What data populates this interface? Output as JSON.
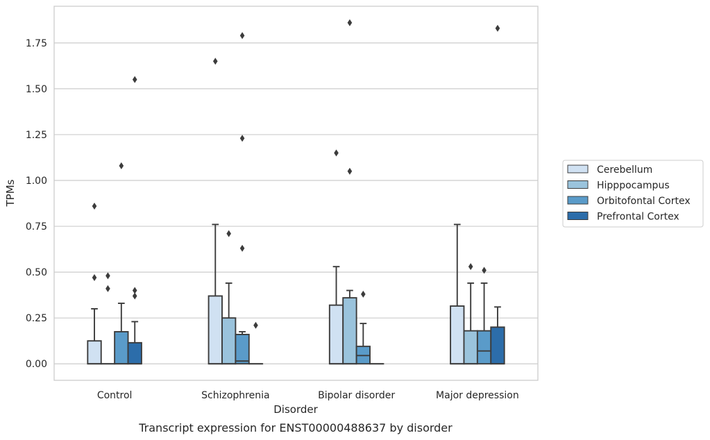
{
  "chart_data": {
    "type": "box",
    "title": "",
    "caption": "Transcript expression for ENST00000488637 by disorder",
    "xlabel": "Disorder",
    "ylabel": "TPMs",
    "ylim": [
      -0.09,
      1.95
    ],
    "yticks": [
      "0.00",
      "0.25",
      "0.50",
      "0.75",
      "1.00",
      "1.25",
      "1.50",
      "1.75"
    ],
    "categories": [
      "Control",
      "Schizophrenia",
      "Bipolar disorder",
      "Major depression"
    ],
    "grid": "horizontal",
    "legend_position": "right",
    "series": [
      {
        "name": "Cerebellum",
        "color": "#d0e1f2",
        "boxes": [
          {
            "q1": 0,
            "median": 0,
            "q3": 0.125,
            "whisker_low": 0,
            "whisker_high": 0.3,
            "outliers": [
              0.47,
              0.86
            ]
          },
          {
            "q1": 0,
            "median": 0,
            "q3": 0.37,
            "whisker_low": 0,
            "whisker_high": 0.76,
            "outliers": [
              1.65
            ]
          },
          {
            "q1": 0,
            "median": 0,
            "q3": 0.32,
            "whisker_low": 0,
            "whisker_high": 0.53,
            "outliers": [
              1.15
            ]
          },
          {
            "q1": 0,
            "median": 0,
            "q3": 0.315,
            "whisker_low": 0,
            "whisker_high": 0.76,
            "outliers": []
          }
        ]
      },
      {
        "name": "Hipppocampus",
        "color": "#9ac3dc",
        "boxes": [
          {
            "q1": 0,
            "median": 0,
            "q3": 0,
            "whisker_low": 0,
            "whisker_high": 0,
            "outliers": [
              0.41,
              0.48
            ]
          },
          {
            "q1": 0,
            "median": 0,
            "q3": 0.25,
            "whisker_low": 0,
            "whisker_high": 0.44,
            "outliers": [
              0.71
            ]
          },
          {
            "q1": 0,
            "median": 0,
            "q3": 0.36,
            "whisker_low": 0,
            "whisker_high": 0.4,
            "outliers": [
              1.05,
              1.86
            ]
          },
          {
            "q1": 0,
            "median": 0,
            "q3": 0.18,
            "whisker_low": 0,
            "whisker_high": 0.44,
            "outliers": [
              0.53
            ]
          }
        ]
      },
      {
        "name": "Orbitofontal Cortex",
        "color": "#5a9bc9",
        "boxes": [
          {
            "q1": 0,
            "median": 0,
            "q3": 0.175,
            "whisker_low": 0,
            "whisker_high": 0.33,
            "outliers": [
              1.08
            ]
          },
          {
            "q1": 0,
            "median": 0.015,
            "q3": 0.16,
            "whisker_low": 0,
            "whisker_high": 0.175,
            "outliers": [
              0.63,
              1.23,
              1.79
            ]
          },
          {
            "q1": 0,
            "median": 0.045,
            "q3": 0.095,
            "whisker_low": 0,
            "whisker_high": 0.22,
            "outliers": [
              0.38
            ]
          },
          {
            "q1": 0,
            "median": 0.07,
            "q3": 0.18,
            "whisker_low": 0,
            "whisker_high": 0.44,
            "outliers": [
              0.51
            ]
          }
        ]
      },
      {
        "name": "Prefrontal Cortex",
        "color": "#2c6daa",
        "boxes": [
          {
            "q1": 0,
            "median": 0,
            "q3": 0.115,
            "whisker_low": 0,
            "whisker_high": 0.23,
            "outliers": [
              0.37,
              0.4,
              1.55
            ]
          },
          {
            "q1": 0,
            "median": 0,
            "q3": 0,
            "whisker_low": 0,
            "whisker_high": 0,
            "outliers": [
              0.21
            ]
          },
          {
            "q1": 0,
            "median": 0,
            "q3": 0,
            "whisker_low": 0,
            "whisker_high": 0,
            "outliers": []
          },
          {
            "q1": 0,
            "median": 0,
            "q3": 0.2,
            "whisker_low": 0,
            "whisker_high": 0.31,
            "outliers": [
              1.83
            ]
          }
        ]
      }
    ]
  }
}
